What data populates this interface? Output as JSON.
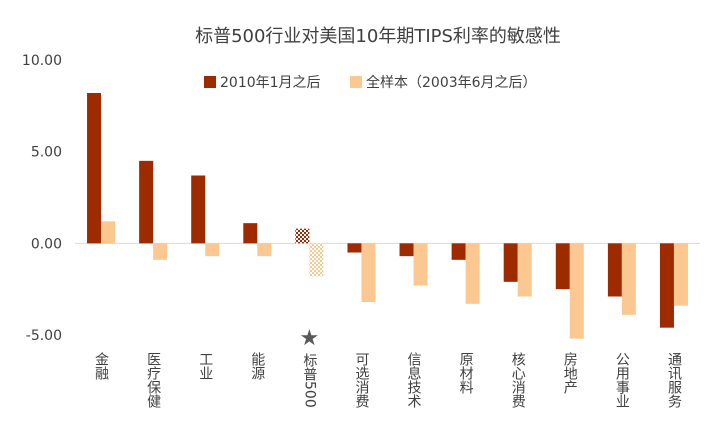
{
  "chart_data": {
    "type": "bar",
    "title": "标普500行业对美国10年期TIPS利率的敏感性",
    "categories": [
      "金融",
      "医疗保健",
      "工业",
      "能源",
      "标普500",
      "可选消费",
      "信息技术",
      "原材料",
      "核心消费",
      "房地产",
      "公用事业",
      "通讯服务"
    ],
    "highlight_category": "标普500",
    "highlight_marker": "★",
    "series": [
      {
        "name": "2010年1月之后",
        "color": "#9e2a00",
        "values": [
          8.2,
          4.5,
          3.7,
          1.1,
          0.8,
          -0.5,
          -0.7,
          -0.9,
          -2.1,
          -2.5,
          -2.9,
          -4.6
        ]
      },
      {
        "name": "全样本（2003年6月之后）",
        "color": "#fbc892",
        "values": [
          1.2,
          -0.9,
          -0.7,
          -0.7,
          -1.8,
          -3.2,
          -2.3,
          -3.3,
          -2.9,
          -5.2,
          -3.9,
          -3.4
        ]
      }
    ],
    "yticks": [
      "10.00",
      "5.00",
      "0.00",
      "-5.00"
    ],
    "ylim": [
      -5,
      10
    ],
    "xlabel": "",
    "ylabel": "",
    "legend_position": "top-center",
    "grid": false
  }
}
